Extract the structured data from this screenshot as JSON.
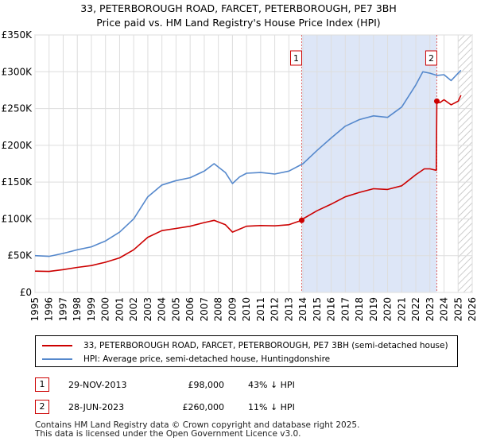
{
  "title": "33, PETERBOROUGH ROAD, FARCET, PETERBOROUGH, PE7 3BH",
  "subtitle": "Price paid vs. HM Land Registry's House Price Index (HPI)",
  "chart_data": {
    "type": "line",
    "title": "33, PETERBOROUGH ROAD, FARCET, PETERBOROUGH, PE7 3BH",
    "subtitle": "Price paid vs. HM Land Registry's House Price Index (HPI)",
    "xlim": [
      1995,
      2026
    ],
    "ylim": [
      0,
      350000
    ],
    "x_ticks": [
      1995,
      1996,
      1997,
      1998,
      1999,
      2000,
      2001,
      2002,
      2003,
      2004,
      2005,
      2006,
      2007,
      2008,
      2009,
      2010,
      2011,
      2012,
      2013,
      2014,
      2015,
      2016,
      2017,
      2018,
      2019,
      2020,
      2021,
      2022,
      2023,
      2024,
      2025,
      2026
    ],
    "x_tick_labels": [
      "1995",
      "1996",
      "1997",
      "1998",
      "1999",
      "2000",
      "2001",
      "2002",
      "2003",
      "2004",
      "2005",
      "2006",
      "2007",
      "2008",
      "2009",
      "2010",
      "2011",
      "2012",
      "2013",
      "2014",
      "2015",
      "2016",
      "2017",
      "2018",
      "2019",
      "2020",
      "2021",
      "2022",
      "2023",
      "2024",
      "2025",
      "2026"
    ],
    "y_ticks": [
      0,
      50000,
      100000,
      150000,
      200000,
      250000,
      300000,
      350000
    ],
    "y_tick_labels": [
      "£0",
      "£50K",
      "£100K",
      "£150K",
      "£200K",
      "£250K",
      "£300K",
      "£350K"
    ],
    "grid": true,
    "series": [
      {
        "name": "33, PETERBOROUGH ROAD, FARCET, PETERBOROUGH, PE7 3BH (semi-detached house)",
        "color": "#cc0000",
        "x": [
          1995,
          1996,
          1997,
          1998,
          1999,
          2000,
          2001,
          2002,
          2003,
          2004,
          2005,
          2006,
          2007,
          2007.7,
          2008.5,
          2009,
          2009.5,
          2010,
          2011,
          2012,
          2013,
          2013.91,
          2014,
          2015,
          2016,
          2017,
          2018,
          2019,
          2020,
          2021,
          2022,
          2022.6,
          2023.0,
          2023.45,
          2023.49,
          2023.7,
          2024,
          2024.5,
          2025,
          2025.2
        ],
        "y": [
          29000,
          28500,
          31000,
          34000,
          36500,
          41000,
          47000,
          58000,
          75000,
          84000,
          87000,
          90000,
          95000,
          98000,
          92000,
          82000,
          86000,
          90000,
          91000,
          90500,
          92000,
          98000,
          100000,
          111000,
          120000,
          130000,
          136000,
          141000,
          140000,
          145000,
          160000,
          168000,
          168000,
          166000,
          260000,
          258000,
          262000,
          255000,
          260000,
          268000
        ]
      },
      {
        "name": "HPI: Average price, semi-detached house, Huntingdonshire",
        "color": "#5588cc",
        "x": [
          1995,
          1996,
          1997,
          1998,
          1999,
          2000,
          2001,
          2002,
          2003,
          2004,
          2005,
          2006,
          2007,
          2007.7,
          2008.5,
          2009,
          2009.5,
          2010,
          2011,
          2012,
          2013,
          2014,
          2015,
          2016,
          2017,
          2018,
          2019,
          2020,
          2021,
          2022,
          2022.5,
          2023,
          2023.5,
          2024,
          2024.5,
          2025,
          2025.2
        ],
        "y": [
          50000,
          49000,
          53000,
          58000,
          62000,
          70000,
          82000,
          100000,
          130000,
          146000,
          152000,
          156000,
          165000,
          175000,
          163000,
          148000,
          157000,
          162000,
          163000,
          161000,
          165000,
          175000,
          193000,
          210000,
          226000,
          235000,
          240000,
          238000,
          252000,
          282000,
          300000,
          298000,
          295000,
          296000,
          288000,
          298000,
          302000
        ]
      }
    ],
    "annotations": [
      {
        "label": "1",
        "x": 2013.91,
        "price": 98000,
        "date": "29-NOV-2013",
        "price_label": "£98,000",
        "hpi": "43% ↓ HPI"
      },
      {
        "label": "2",
        "x": 2023.49,
        "price": 260000,
        "date": "28-JUN-2023",
        "price_label": "£260,000",
        "hpi": "11% ↓ HPI"
      }
    ],
    "forecast_start": 2025.0
  },
  "legend": {
    "entries": [
      {
        "label": "33, PETERBOROUGH ROAD, FARCET, PETERBOROUGH, PE7 3BH (semi-detached house)",
        "color": "#cc0000"
      },
      {
        "label": "HPI: Average price, semi-detached house, Huntingdonshire",
        "color": "#5588cc"
      }
    ]
  },
  "sales": [
    {
      "num": "1",
      "date": "29-NOV-2013",
      "price": "£98,000",
      "hpi": "43% ↓ HPI"
    },
    {
      "num": "2",
      "date": "28-JUN-2023",
      "price": "£260,000",
      "hpi": "11% ↓ HPI"
    }
  ],
  "footer": {
    "line1": "Contains HM Land Registry data © Crown copyright and database right 2025.",
    "line2": "This data is licensed under the Open Government Licence v3.0."
  }
}
